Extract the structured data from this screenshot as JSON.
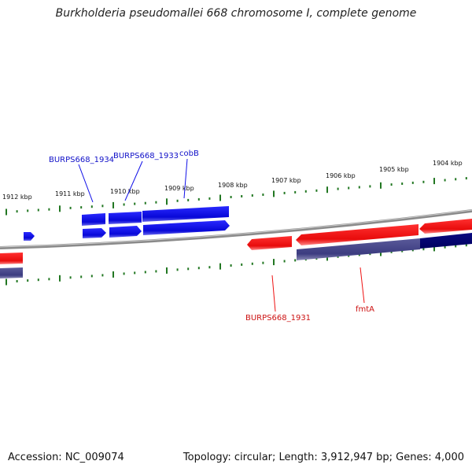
{
  "title": "Burkholderia pseudomallei 668 chromosome I, complete genome",
  "accession_text": "Accession: NC_009074",
  "summary_text": "Topology: circular; Length: 3,912,947 bp; Genes: 4,000",
  "colors": {
    "forward_gene": "#1010e8",
    "reverse_gene": "#ee1111",
    "cds": "#4a4a8c",
    "tick": "#227722",
    "backbone": "#888888"
  },
  "ticks": [
    {
      "label": "1912 kbp"
    },
    {
      "label": "1911 kbp"
    },
    {
      "label": "1910 kbp"
    },
    {
      "label": "1909 kbp"
    },
    {
      "label": "1908 kbp"
    },
    {
      "label": "1907 kbp"
    },
    {
      "label": "1906 kbp"
    },
    {
      "label": "1905 kbp"
    },
    {
      "label": "1904 kbp"
    }
  ],
  "gene_labels": [
    {
      "name": "BURPS668_1934",
      "strand": "forward"
    },
    {
      "name": "BURPS668_1933",
      "strand": "forward"
    },
    {
      "name": "cobB",
      "strand": "forward"
    },
    {
      "name": "BURPS668_1931",
      "strand": "reverse"
    },
    {
      "name": "fmtA",
      "strand": "reverse"
    }
  ]
}
